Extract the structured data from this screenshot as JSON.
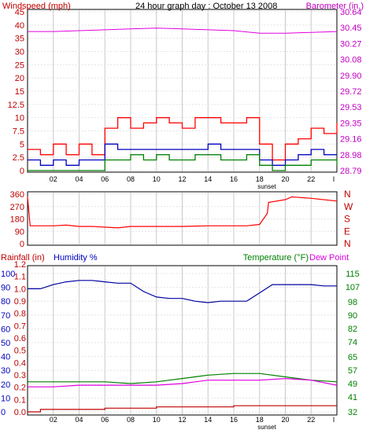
{
  "chart_data": [
    {
      "type": "line",
      "title": "24 hour graph day : October 13 2008",
      "left_axis_label": "Windspeed (mph)",
      "right_axis_label": "Barometer (in.)",
      "x_ticks": [
        "02",
        "04",
        "06",
        "08",
        "10",
        "12",
        "14",
        "16",
        "18",
        "20",
        "22",
        "I"
      ],
      "x_note": "sunset",
      "left_ticks": [
        "0",
        "2.5",
        "5",
        "7.5",
        "10",
        "12.5",
        "15",
        "20",
        "25",
        "30",
        "35",
        "40",
        "45"
      ],
      "right_ticks": [
        "28.79",
        "28.98",
        "29.16",
        "29.35",
        "29.53",
        "29.72",
        "29.90",
        "30.08",
        "30.27",
        "30.45",
        "30.64"
      ],
      "ylim_left": [
        0,
        45
      ],
      "ylim_right": [
        28.79,
        30.64
      ],
      "grid": true,
      "colors": {
        "gust": "#ff0000",
        "avg": "#0000c0",
        "min": "#008000",
        "barometer": "#e000e0",
        "left": "#c00000",
        "right": "#c000c0"
      },
      "series": [
        {
          "key": "barometer",
          "axis": "right",
          "hours": [
            0,
            2,
            4,
            6,
            8,
            10,
            12,
            14,
            16,
            18,
            20,
            22,
            24
          ],
          "values": [
            30.41,
            30.41,
            30.42,
            30.43,
            30.44,
            30.45,
            30.44,
            30.43,
            30.42,
            30.39,
            30.39,
            30.4,
            30.41
          ]
        },
        {
          "key": "gust",
          "axis": "left",
          "hours": [
            0,
            1,
            2,
            3,
            4,
            5,
            6,
            7,
            8,
            9,
            10,
            11,
            12,
            13,
            14,
            15,
            16,
            17,
            18,
            19,
            20,
            21,
            22,
            23,
            24
          ],
          "values": [
            4,
            3,
            5,
            3,
            5,
            3,
            8,
            10,
            8,
            9,
            10,
            9,
            8,
            10,
            10,
            9,
            9,
            10,
            5,
            2,
            5,
            6,
            8,
            7,
            9
          ]
        },
        {
          "key": "avg",
          "axis": "left",
          "hours": [
            0,
            1,
            2,
            3,
            4,
            5,
            6,
            7,
            8,
            9,
            10,
            11,
            12,
            13,
            14,
            15,
            16,
            17,
            18,
            19,
            20,
            21,
            22,
            23,
            24
          ],
          "values": [
            2,
            1,
            2,
            1,
            2,
            2,
            5,
            4,
            4,
            4,
            4,
            4,
            4,
            4,
            5,
            4,
            4,
            4,
            2,
            1,
            2,
            3,
            4,
            3,
            3
          ]
        },
        {
          "key": "min",
          "axis": "left",
          "hours": [
            0,
            1,
            2,
            3,
            4,
            5,
            6,
            7,
            8,
            9,
            10,
            11,
            12,
            13,
            14,
            15,
            16,
            17,
            18,
            19,
            20,
            21,
            22,
            23,
            24
          ],
          "values": [
            0,
            0,
            0,
            0,
            0,
            0,
            2,
            2,
            3,
            2,
            3,
            2,
            2,
            3,
            3,
            2,
            2,
            3,
            1,
            0,
            1,
            1,
            2,
            2,
            1
          ]
        }
      ]
    },
    {
      "type": "line",
      "left_ticks": [
        "0",
        "90",
        "180",
        "270",
        "360"
      ],
      "right_ticks": [
        "N",
        "W",
        "S",
        "E",
        "N"
      ],
      "ylim": [
        0,
        360
      ],
      "grid": true,
      "colors": {
        "direction": "#ff0000",
        "left": "#c00000",
        "right": "#c00000"
      },
      "series": [
        {
          "key": "direction",
          "hours": [
            0,
            0.2,
            2,
            3,
            4,
            5,
            6,
            7,
            8,
            10,
            12,
            14,
            16,
            17,
            18,
            18.6,
            18.7,
            20,
            20.5,
            22,
            24
          ],
          "values": [
            340,
            130,
            130,
            135,
            125,
            125,
            120,
            115,
            125,
            125,
            125,
            130,
            130,
            130,
            140,
            220,
            300,
            320,
            340,
            330,
            310
          ]
        }
      ]
    },
    {
      "type": "line",
      "left_axis_label_a": "Rainfall (in)",
      "left_axis_label_b": "Humidity %",
      "right_axis_label_a": "Temperature (°F)",
      "right_axis_label_b": "Dew Point",
      "x_ticks": [
        "02",
        "04",
        "06",
        "08",
        "10",
        "12",
        "14",
        "16",
        "18",
        "20",
        "22",
        "I"
      ],
      "x_note": "sunset",
      "humidity_ticks": [
        "0",
        "10",
        "20",
        "30",
        "40",
        "50",
        "60",
        "70",
        "80",
        "90",
        "100"
      ],
      "rain_ticks": [
        "0.0",
        "0.1",
        "0.2",
        "0.3",
        "0.4",
        "0.5",
        "0.6",
        "0.7",
        "0.8",
        "0.9",
        "1.0",
        "1.1",
        "1.2"
      ],
      "temp_ticks": [
        "32",
        "41",
        "49",
        "57",
        "65",
        "74",
        "82",
        "90",
        "98",
        "107",
        "115"
      ],
      "ylim_humidity": [
        0,
        100
      ],
      "ylim_temp": [
        32,
        115
      ],
      "grid": true,
      "colors": {
        "humidity": "#0000a0",
        "temperature": "#008000",
        "dewpoint": "#e000e0",
        "rain": "#c00000",
        "left_rain": "#c00000",
        "left_hum": "#0000c0",
        "right": "#008000"
      },
      "series": [
        {
          "key": "humidity",
          "hours": [
            0,
            1,
            2,
            3,
            4,
            5,
            6,
            7,
            8,
            9,
            10,
            11,
            12,
            13,
            14,
            15,
            16,
            17,
            18,
            19,
            20,
            21,
            22,
            23,
            24
          ],
          "values": [
            89,
            89,
            92,
            94,
            95,
            95,
            94,
            93,
            93,
            87,
            83,
            82,
            82,
            80,
            79,
            80,
            80,
            80,
            86,
            92,
            92,
            92,
            92,
            91,
            91
          ]
        },
        {
          "key": "temperature",
          "hours": [
            0,
            2,
            4,
            6,
            8,
            10,
            11,
            12,
            14,
            16,
            18,
            20,
            22,
            24
          ],
          "values": [
            50,
            50,
            50,
            50,
            49,
            50,
            51,
            52,
            54,
            55,
            55,
            53,
            51,
            50
          ]
        },
        {
          "key": "dewpoint",
          "hours": [
            0,
            2,
            4,
            6,
            8,
            10,
            12,
            14,
            16,
            18,
            20,
            22,
            24
          ],
          "values": [
            47,
            47,
            48,
            48,
            48,
            48,
            49,
            51,
            51,
            51,
            52,
            51,
            48
          ]
        },
        {
          "key": "rain",
          "hours": [
            0,
            1,
            2,
            4,
            6,
            8,
            10,
            12,
            14,
            16,
            18,
            20,
            22,
            24
          ],
          "values": [
            0,
            0.02,
            0.02,
            0.02,
            0.03,
            0.03,
            0.04,
            0.04,
            0.04,
            0.05,
            0.05,
            0.05,
            0.05,
            0.05
          ]
        }
      ]
    }
  ]
}
